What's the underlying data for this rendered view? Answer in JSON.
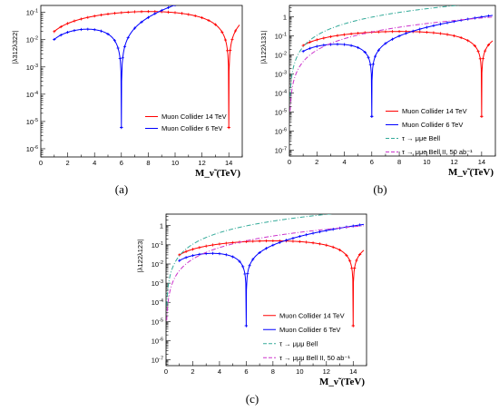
{
  "chart_data": [
    {
      "type": "line",
      "caption": "(a)",
      "xlabel": "M_ν̃ (TeV)",
      "ylabel": "|λ312λ322|",
      "xlim": [
        0,
        15
      ],
      "ylim": [
        5e-07,
        0.18
      ],
      "yscale": "log",
      "xticks": [
        "0",
        "2",
        "4",
        "6",
        "8",
        "10",
        "12",
        "14"
      ],
      "yticks": [
        "10^-6",
        "10^-5",
        "10^-4",
        "10^-3",
        "10^-2",
        "10^-1"
      ],
      "legend_placement": "middle-right",
      "series": [
        {
          "name": "Muon Collider 14 TeV",
          "color": "#ff0000",
          "mass": 14,
          "k": 0.02,
          "x": [
            1,
            14.8
          ]
        },
        {
          "name": "Muon Collider 6 TeV",
          "color": "#0000ff",
          "mass": 6,
          "k": 0.0105,
          "x": [
            1,
            14.8
          ]
        }
      ]
    },
    {
      "type": "line",
      "caption": "(b)",
      "xlabel": "M_ν̃ (TeV)",
      "ylabel": "|λ122λ131|",
      "xlim": [
        0,
        15
      ],
      "ylim": [
        5e-08,
        4
      ],
      "yscale": "log",
      "xticks": [
        "0",
        "2",
        "4",
        "6",
        "8",
        "10",
        "12",
        "14"
      ],
      "yticks": [
        "10^-7",
        "10^-6",
        "10^-5",
        "10^-4",
        "10^-3",
        "10^-2",
        "10^-1",
        "1"
      ],
      "legend_placement": "bottom-right",
      "series": [
        {
          "name": "Muon Collider 14 TeV",
          "color": "#ff0000",
          "mass": 14,
          "k": 0.032,
          "x": [
            1,
            14.8
          ]
        },
        {
          "name": "Muon Collider 6 TeV",
          "color": "#0000ff",
          "mass": 6,
          "k": 0.016,
          "x": [
            1,
            14.8
          ]
        },
        {
          "name": "τ → μμe  Bell",
          "color": "#33aa99",
          "dash": true,
          "c": 0.027,
          "x": [
            0.05,
            14.8
          ]
        },
        {
          "name": "τ → μμe Bell II, 50 ab⁻¹",
          "color": "#cc33cc",
          "dash": true,
          "c": 0.0045,
          "x": [
            0.05,
            14.8
          ]
        }
      ]
    },
    {
      "type": "line",
      "caption": "(c)",
      "xlabel": "M_ν̃ (TeV)",
      "ylabel": "|λ122λ123|",
      "xlim": [
        0,
        15
      ],
      "ylim": [
        5e-08,
        4
      ],
      "yscale": "log",
      "xticks": [
        "0",
        "2",
        "4",
        "6",
        "8",
        "10",
        "12",
        "14"
      ],
      "yticks": [
        "10^-7",
        "10^-6",
        "10^-5",
        "10^-4",
        "10^-3",
        "10^-2",
        "10^-1",
        "1"
      ],
      "legend_placement": "bottom-right",
      "series": [
        {
          "name": "Muon Collider 14 TeV",
          "color": "#ff0000",
          "mass": 14,
          "k": 0.03,
          "x": [
            1,
            14.8
          ]
        },
        {
          "name": "Muon Collider 6 TeV",
          "color": "#0000ff",
          "mass": 6,
          "k": 0.0155,
          "x": [
            1,
            14.8
          ]
        },
        {
          "name": "τ → μμμ Bell",
          "color": "#33aa99",
          "dash": true,
          "c": 0.027,
          "x": [
            0.05,
            14.8
          ]
        },
        {
          "name": "τ → μμμ Bell II, 50 ab⁻¹",
          "color": "#cc33cc",
          "dash": true,
          "c": 0.0045,
          "x": [
            0.05,
            14.8
          ]
        }
      ]
    }
  ]
}
